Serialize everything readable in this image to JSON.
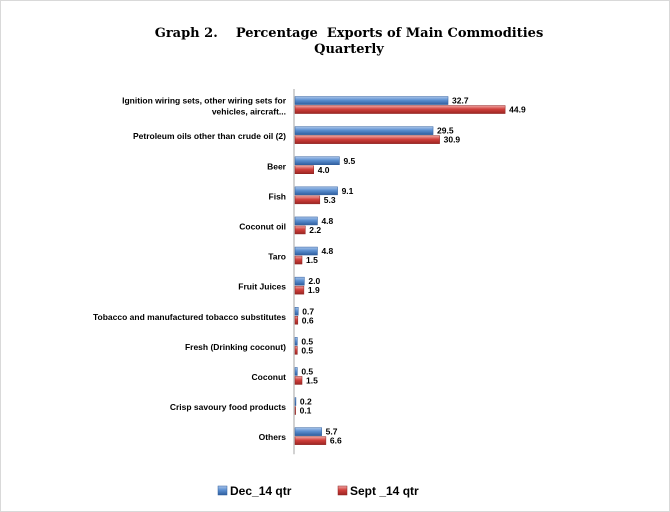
{
  "chart_data": {
    "type": "bar",
    "orientation": "horizontal",
    "title": "Graph 2.    Percentage  Exports of Main Commodities",
    "subtitle": "Quarterly",
    "categories": [
      [
        "Ignition wiring sets, other wiring sets for",
        "vehicles, aircraft..."
      ],
      [
        "Petroleum oils other than crude oil (2)"
      ],
      [
        "Beer"
      ],
      [
        "Fish"
      ],
      [
        "Coconut oil"
      ],
      [
        "Taro"
      ],
      [
        "Fruit Juices"
      ],
      [
        "Tobacco and manufactured tobacco substitutes"
      ],
      [
        "Fresh (Drinking coconut)"
      ],
      [
        "Coconut"
      ],
      [
        "Crisp savoury food products"
      ],
      [
        "Others"
      ]
    ],
    "series": [
      {
        "name": "Dec_14 qtr",
        "color": "#4f81bd",
        "values": [
          32.7,
          29.5,
          9.5,
          9.1,
          4.8,
          4.8,
          2.0,
          0.7,
          0.5,
          0.5,
          0.2,
          5.7
        ],
        "labels": [
          "32.7",
          "29.5",
          "9.5",
          "9.1",
          "4.8",
          "4.8",
          "2.0",
          "0.7",
          "0.5",
          "0.5",
          "0.2",
          "5.7"
        ]
      },
      {
        "name": "Sept _14 qtr",
        "color": "#c0504d",
        "values": [
          44.9,
          30.9,
          4.0,
          5.3,
          2.2,
          1.5,
          1.9,
          0.6,
          0.5,
          1.5,
          0.1,
          6.6
        ],
        "labels": [
          "44.9",
          "30.9",
          "4.0",
          "5.3",
          "2.2",
          "1.5",
          "1.9",
          "0.6",
          "0.5",
          "1.5",
          "0.1",
          "6.6"
        ]
      }
    ],
    "xlim": [
      0,
      50
    ],
    "grid": false,
    "legend": "bottom"
  }
}
